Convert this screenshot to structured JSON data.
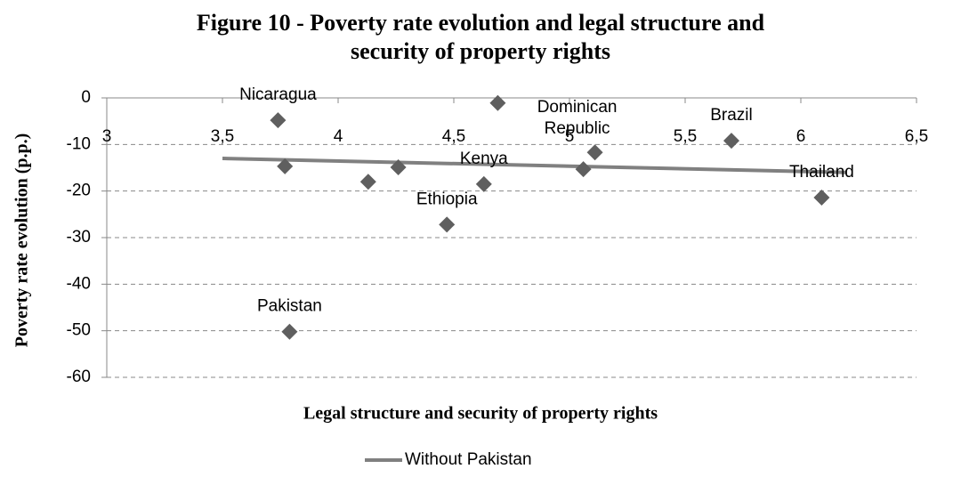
{
  "chart_data": {
    "type": "scatter",
    "title": [
      "Figure 10 - Poverty rate evolution and legal structure and",
      "security of property rights"
    ],
    "xlabel": "Legal structure and security of property rights",
    "ylabel": "Poverty rate evolution (p.p.)",
    "xlim": [
      3,
      6.5
    ],
    "xticks": [
      3,
      {
        "value": 3.5,
        "label": "3,5"
      },
      4,
      {
        "value": 4.5,
        "label": "4,5"
      },
      5,
      {
        "value": 5.5,
        "label": "5,5"
      },
      6,
      {
        "value": 6.5,
        "label": "6,5"
      }
    ],
    "ylim": [
      -60,
      0
    ],
    "yticks": [
      0,
      -10,
      -20,
      -30,
      -40,
      -50,
      -60
    ],
    "grid": true,
    "points": {
      "color": "#5f5f5f",
      "x": [
        3.74,
        3.77,
        4.13,
        4.26,
        4.47,
        4.63,
        4.69,
        5.06,
        5.11,
        5.7,
        6.09,
        3.79
      ],
      "values": [
        -4.8,
        -14.7,
        -18.0,
        -14.9,
        -27.2,
        -18.5,
        -1.1,
        -15.3,
        -11.7,
        -9.2,
        -21.4,
        -50.2
      ],
      "labels": [
        "Nicaragua",
        null,
        null,
        null,
        "Ethiopia",
        "Kenya",
        null,
        null,
        "Dominican Republic",
        "Brazil",
        "Thailand",
        "Pakistan"
      ]
    },
    "series": [
      {
        "name": "Without Pakistan",
        "color": "#808080",
        "x": [
          3.5,
          6.2
        ],
        "values": [
          -13,
          -16
        ]
      }
    ],
    "legend": "bottom"
  }
}
